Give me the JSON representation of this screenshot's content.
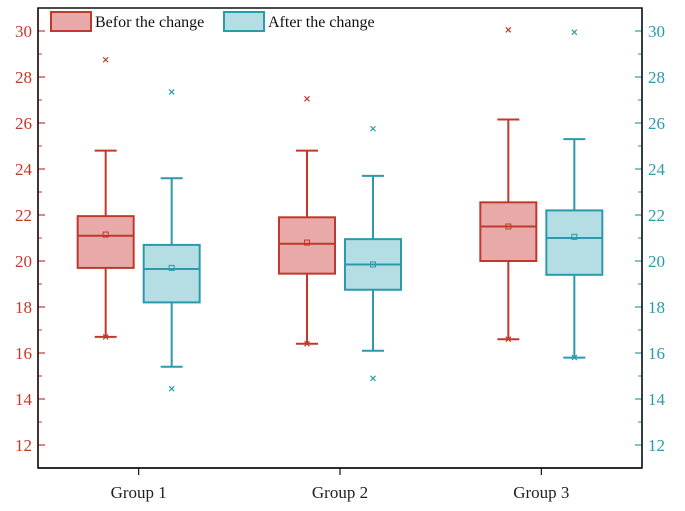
{
  "chart_data": {
    "type": "boxplot",
    "title": "",
    "xlabel": "",
    "ylabel": "",
    "ylim": [
      11,
      31
    ],
    "yticks": [
      12,
      14,
      16,
      18,
      20,
      22,
      24,
      26,
      28,
      30
    ],
    "categories": [
      "Group 1",
      "Group 2",
      "Group 3"
    ],
    "series": [
      {
        "name": "Befor the change",
        "stroke": "#c0392b",
        "fill": "#e8aaa8",
        "boxes": [
          {
            "whisker_low": 16.7,
            "q1": 19.7,
            "median": 21.1,
            "q3": 21.95,
            "whisker_high": 24.8,
            "mean": 21.15,
            "min_marker": 16.7,
            "outliers": [
              28.75
            ]
          },
          {
            "whisker_low": 16.4,
            "q1": 19.45,
            "median": 20.75,
            "q3": 21.9,
            "whisker_high": 24.8,
            "mean": 20.8,
            "min_marker": 16.4,
            "outliers": [
              27.05
            ]
          },
          {
            "whisker_low": 16.6,
            "q1": 20.0,
            "median": 21.5,
            "q3": 22.55,
            "whisker_high": 26.15,
            "mean": 21.5,
            "min_marker": 16.6,
            "outliers": [
              30.05
            ]
          }
        ]
      },
      {
        "name": "After the change",
        "stroke": "#2a9aac",
        "fill": "#b4dde4",
        "boxes": [
          {
            "whisker_low": 15.4,
            "q1": 18.2,
            "median": 19.65,
            "q3": 20.7,
            "whisker_high": 23.6,
            "mean": 19.7,
            "outliers": [
              14.45,
              27.35
            ]
          },
          {
            "whisker_low": 16.1,
            "q1": 18.75,
            "median": 19.85,
            "q3": 20.95,
            "whisker_high": 23.7,
            "mean": 19.85,
            "outliers": [
              14.9,
              25.75
            ]
          },
          {
            "whisker_low": 15.8,
            "q1": 19.4,
            "median": 21.0,
            "q3": 22.2,
            "whisker_high": 25.3,
            "mean": 21.05,
            "min_marker": 15.8,
            "outliers": [
              29.95
            ]
          }
        ]
      }
    ],
    "legend": {
      "location": "top-left"
    }
  }
}
